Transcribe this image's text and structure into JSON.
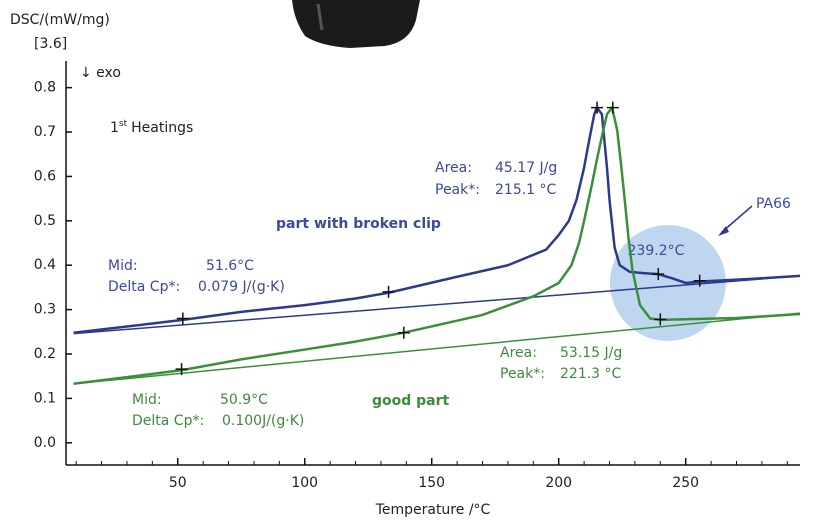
{
  "chart_data": {
    "type": "line",
    "y_label": "DSC/(mW/mg)",
    "y_factor": "[3.6]",
    "exo_label": "↓ exo",
    "x_label": "Temperature /°C",
    "heating": {
      "number": "1",
      "suffix": "st",
      "text": "Heatings"
    },
    "xlim": [
      6,
      295
    ],
    "ylim": [
      -0.05,
      0.86
    ],
    "xticks": [
      50,
      100,
      150,
      200,
      250
    ],
    "xminorticks": [
      10,
      20,
      30,
      40,
      60,
      70,
      80,
      90,
      110,
      120,
      130,
      140,
      160,
      170,
      180,
      190,
      210,
      220,
      230,
      240,
      260,
      270,
      280,
      290
    ],
    "yticks": [
      {
        "value": 0,
        "label": "0.0"
      },
      0.1,
      0.2,
      0.3,
      0.4,
      0.5,
      0.6,
      0.7,
      0.8
    ],
    "series": [
      {
        "name": "part with broken clip",
        "color": "#2c3a8e",
        "x": [
          9,
          30,
          52,
          75,
          100,
          120,
          133,
          160,
          180,
          195,
          200,
          204,
          207,
          210,
          212,
          214,
          215,
          217,
          219,
          220,
          222,
          224,
          228,
          234,
          239,
          245,
          250,
          255,
          275,
          295
        ],
        "values": [
          0.248,
          0.262,
          0.277,
          0.295,
          0.31,
          0.325,
          0.338,
          0.374,
          0.4,
          0.435,
          0.468,
          0.5,
          0.547,
          0.62,
          0.682,
          0.74,
          0.755,
          0.74,
          0.62,
          0.547,
          0.44,
          0.4,
          0.385,
          0.382,
          0.38,
          0.37,
          0.36,
          0.363,
          0.369,
          0.376
        ],
        "markers": {
          "x": [
            52,
            133,
            215.1,
            239.2,
            255.5
          ],
          "values": [
            0.28,
            0.34,
            0.755,
            0.38,
            0.365
          ]
        },
        "baseline": {
          "x": [
            9,
            295
          ],
          "values": [
            0.246,
            0.376
          ]
        },
        "mid_label": "Mid:",
        "mid_value": "51.6°C",
        "cp_label": "Delta Cp*:",
        "cp_value": "0.079 J/(g·K)",
        "area_label": "Area:",
        "area_value": "45.17 J/g",
        "peak_label": "Peak*:",
        "peak_value": "215.1 °C"
      },
      {
        "name": "good part",
        "color": "#3a903a",
        "x": [
          9,
          30,
          52,
          75,
          100,
          120,
          139,
          170,
          190,
          200,
          205,
          208,
          210,
          213,
          215,
          217,
          219,
          221,
          223,
          224.5,
          226,
          227.5,
          229,
          232,
          236,
          240,
          270,
          295
        ],
        "values": [
          0.133,
          0.148,
          0.164,
          0.188,
          0.21,
          0.228,
          0.248,
          0.288,
          0.33,
          0.36,
          0.4,
          0.45,
          0.5,
          0.58,
          0.637,
          0.69,
          0.74,
          0.755,
          0.705,
          0.63,
          0.547,
          0.46,
          0.39,
          0.31,
          0.28,
          0.277,
          0.281,
          0.29
        ],
        "markers": {
          "x": [
            51.5,
            139,
            221.3,
            240
          ],
          "values": [
            0.166,
            0.248,
            0.755,
            0.278
          ]
        },
        "baseline": {
          "x": [
            9,
            295
          ],
          "values": [
            0.133,
            0.292
          ]
        },
        "mid_label": "Mid:",
        "mid_value": "50.9°C",
        "cp_label": "Delta Cp*:",
        "cp_value": "0.100J/(g·K)",
        "area_label": "Area:",
        "area_value": "53.15 J/g",
        "peak_label": "Peak*:",
        "peak_value": "221.3 °C"
      }
    ],
    "highlight": {
      "label": "239.2°C",
      "x": 243,
      "value": 0.36
    },
    "pa_label": "PA66"
  }
}
